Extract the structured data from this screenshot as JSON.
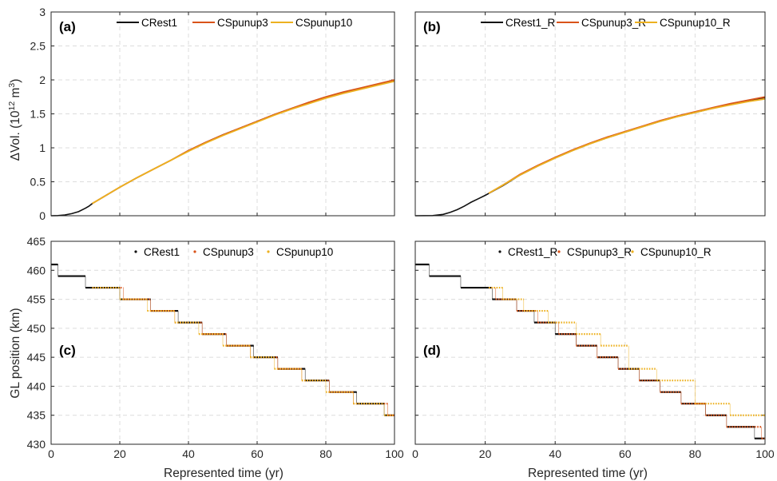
{
  "colors": {
    "CRest1": "#111111",
    "CSpunup3": "#d95319",
    "CSpunup10": "#edb120"
  },
  "axis_labels": {
    "bottom_x": "Represented time (yr)",
    "top_y_prefix": "ΔVol. (10",
    "top_y_exp": "12",
    "top_y_mid": " m",
    "top_y_exp2": "3",
    "top_y_suffix": ")",
    "bottom_y": "GL position (km)"
  },
  "chart_data": [
    {
      "panel": "(a)",
      "type": "line",
      "xlabel": "",
      "ylabel": "ΔVol. (10^12 m^3)",
      "xlim": [
        0,
        100
      ],
      "ylim": [
        0,
        3
      ],
      "xticks": [
        "0",
        "20",
        "40",
        "60",
        "80",
        "100"
      ],
      "yticks": [
        "0",
        "0.5",
        "1",
        "1.5",
        "2",
        "2.5",
        "3"
      ],
      "grid": true,
      "legend": "top",
      "series": [
        {
          "name": "CRest1",
          "color_key": "CRest1",
          "x": [
            0,
            2,
            4,
            6,
            8,
            10,
            11,
            12,
            14,
            16,
            18,
            20,
            25,
            30,
            35,
            40,
            45,
            50,
            55,
            60,
            65,
            70,
            75,
            80,
            85,
            90,
            95,
            100
          ],
          "y": [
            0,
            0.002,
            0.012,
            0.03,
            0.06,
            0.11,
            0.14,
            0.18,
            0.24,
            0.3,
            0.36,
            0.42,
            0.56,
            0.69,
            0.82,
            0.96,
            1.08,
            1.19,
            1.29,
            1.39,
            1.49,
            1.58,
            1.66,
            1.74,
            1.81,
            1.87,
            1.93,
            1.99
          ]
        },
        {
          "name": "CSpunup3",
          "color_key": "CSpunup3",
          "x": [
            12,
            14,
            16,
            18,
            20,
            25,
            30,
            35,
            40,
            45,
            50,
            55,
            60,
            65,
            70,
            75,
            80,
            85,
            90,
            95,
            100
          ],
          "y": [
            0.18,
            0.24,
            0.3,
            0.36,
            0.42,
            0.56,
            0.69,
            0.82,
            0.96,
            1.08,
            1.19,
            1.29,
            1.39,
            1.49,
            1.58,
            1.67,
            1.75,
            1.82,
            1.88,
            1.94,
            2.0
          ]
        },
        {
          "name": "CSpunup10",
          "color_key": "CSpunup10",
          "x": [
            12,
            14,
            16,
            18,
            20,
            25,
            30,
            35,
            40,
            45,
            50,
            55,
            60,
            65,
            70,
            75,
            80,
            85,
            90,
            95,
            100
          ],
          "y": [
            0.18,
            0.24,
            0.3,
            0.36,
            0.42,
            0.56,
            0.69,
            0.82,
            0.95,
            1.07,
            1.18,
            1.28,
            1.38,
            1.48,
            1.57,
            1.65,
            1.73,
            1.8,
            1.86,
            1.92,
            1.98
          ]
        }
      ]
    },
    {
      "panel": "(b)",
      "type": "line",
      "xlabel": "",
      "ylabel": "",
      "xlim": [
        0,
        100
      ],
      "ylim": [
        0,
        3
      ],
      "xticks": [
        "0",
        "20",
        "40",
        "60",
        "80",
        "100"
      ],
      "yticks": [
        "0",
        "0.5",
        "1",
        "1.5",
        "2",
        "2.5",
        "3"
      ],
      "grid": true,
      "legend": "top",
      "series": [
        {
          "name": "CRest1_R",
          "color_key": "CRest1",
          "x": [
            0,
            5,
            8,
            10,
            12,
            14,
            16,
            18,
            20,
            25,
            30,
            35,
            40,
            45,
            50,
            55,
            60,
            65,
            70,
            75,
            80,
            85,
            90,
            95,
            100
          ],
          "y": [
            0,
            0.002,
            0.02,
            0.05,
            0.09,
            0.14,
            0.2,
            0.25,
            0.3,
            0.44,
            0.6,
            0.73,
            0.85,
            0.96,
            1.06,
            1.15,
            1.23,
            1.31,
            1.39,
            1.46,
            1.52,
            1.58,
            1.64,
            1.69,
            1.74
          ]
        },
        {
          "name": "CSpunup3_R",
          "color_key": "CSpunup3",
          "x": [
            21,
            25,
            30,
            35,
            40,
            45,
            50,
            55,
            60,
            65,
            70,
            75,
            80,
            85,
            90,
            95,
            100
          ],
          "y": [
            0.33,
            0.45,
            0.61,
            0.74,
            0.86,
            0.97,
            1.07,
            1.16,
            1.24,
            1.32,
            1.4,
            1.47,
            1.53,
            1.59,
            1.65,
            1.7,
            1.75
          ]
        },
        {
          "name": "CSpunup10_R",
          "color_key": "CSpunup10",
          "x": [
            21,
            25,
            30,
            35,
            40,
            45,
            50,
            55,
            60,
            65,
            70,
            75,
            80,
            85,
            90,
            95,
            100
          ],
          "y": [
            0.33,
            0.45,
            0.6,
            0.73,
            0.85,
            0.96,
            1.06,
            1.15,
            1.23,
            1.31,
            1.39,
            1.46,
            1.52,
            1.58,
            1.63,
            1.68,
            1.72
          ]
        }
      ]
    },
    {
      "panel": "(c)",
      "type": "scatter",
      "xlabel": "Represented time (yr)",
      "ylabel": "GL position (km)",
      "xlim": [
        0,
        100
      ],
      "ylim": [
        430,
        465
      ],
      "xticks": [
        "0",
        "20",
        "40",
        "60",
        "80",
        "100"
      ],
      "yticks": [
        "430",
        "435",
        "440",
        "445",
        "450",
        "455",
        "460",
        "465"
      ],
      "grid": true,
      "legend": "top",
      "series": [
        {
          "name": "CRest1",
          "color_key": "CRest1",
          "style": "step",
          "x": [
            0,
            2,
            10,
            20,
            29,
            37,
            44,
            51,
            59,
            66,
            74,
            81,
            89,
            97,
            100
          ],
          "y": [
            461,
            459,
            457,
            455,
            453,
            451,
            449,
            447,
            445,
            443,
            441,
            439,
            437,
            435,
            435
          ]
        },
        {
          "name": "CSpunup3",
          "color_key": "CSpunup3",
          "style": "step",
          "x": [
            12,
            21,
            29,
            36,
            44,
            51,
            58,
            66,
            73,
            81,
            88,
            98,
            100
          ],
          "y": [
            457,
            455,
            453,
            451,
            449,
            447,
            445,
            443,
            441,
            439,
            437,
            435,
            435
          ]
        },
        {
          "name": "CSpunup10",
          "color_key": "CSpunup10",
          "style": "step",
          "x": [
            12,
            20,
            28,
            36,
            43,
            50,
            58,
            65,
            73,
            80,
            88,
            97,
            100
          ],
          "y": [
            457,
            455,
            453,
            451,
            449,
            447,
            445,
            443,
            441,
            439,
            437,
            435,
            435
          ]
        }
      ]
    },
    {
      "panel": "(d)",
      "type": "scatter",
      "xlabel": "Represented time (yr)",
      "ylabel": "",
      "xlim": [
        0,
        100
      ],
      "ylim": [
        430,
        465
      ],
      "xticks": [
        "0",
        "20",
        "40",
        "60",
        "80",
        "100"
      ],
      "yticks": [
        "430",
        "435",
        "440",
        "445",
        "450",
        "455",
        "460",
        "465"
      ],
      "grid": true,
      "legend": "top",
      "series": [
        {
          "name": "CRest1_R",
          "color_key": "CRest1",
          "style": "step",
          "x": [
            0,
            4,
            13,
            22,
            29,
            34,
            40,
            46,
            52,
            58,
            64,
            70,
            76,
            83,
            89,
            97,
            100
          ],
          "y": [
            461,
            459,
            457,
            455,
            453,
            451,
            449,
            447,
            445,
            443,
            441,
            439,
            437,
            435,
            433,
            431,
            431
          ]
        },
        {
          "name": "CSpunup3_R",
          "color_key": "CSpunup3",
          "style": "step",
          "x": [
            21,
            23,
            29,
            35,
            41,
            46,
            52,
            58,
            64,
            70,
            76,
            83,
            89,
            99,
            100
          ],
          "y": [
            457,
            455,
            453,
            451,
            449,
            447,
            445,
            443,
            441,
            439,
            437,
            435,
            433,
            431,
            431
          ]
        },
        {
          "name": "CSpunup10_R",
          "color_key": "CSpunup10",
          "style": "step",
          "x": [
            21,
            25,
            31,
            38,
            46,
            53,
            61,
            69,
            80,
            90,
            100
          ],
          "y": [
            457,
            455,
            453,
            451,
            449,
            447,
            443,
            441,
            437,
            435,
            435
          ]
        }
      ]
    }
  ]
}
